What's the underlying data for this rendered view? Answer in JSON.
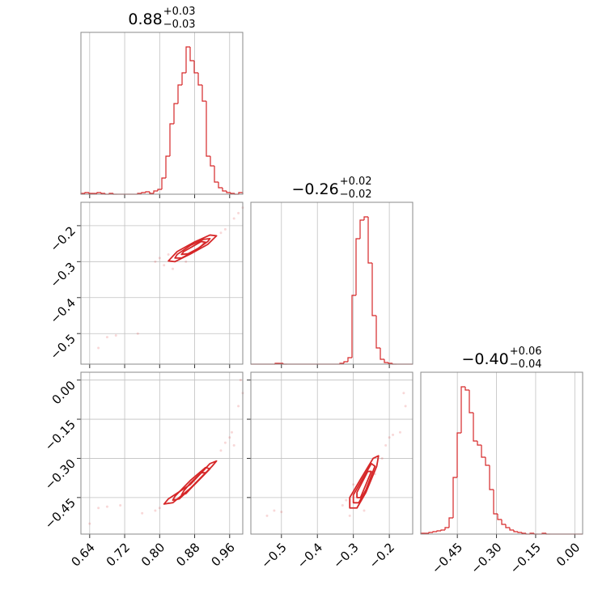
{
  "chart_data": [
    {
      "type": "histogram",
      "title": "0.88",
      "title_upper": "+0.03",
      "title_lower": "−0.03",
      "color": "#d62728",
      "bins": [
        0.62,
        0.62925,
        0.6385,
        0.64775,
        0.657,
        0.66625,
        0.6755,
        0.68475,
        0.694,
        0.70325,
        0.7125,
        0.72175,
        0.731,
        0.74025,
        0.7495,
        0.75875,
        0.768,
        0.77725,
        0.7865,
        0.79575,
        0.805,
        0.81425,
        0.8235,
        0.83275,
        0.842,
        0.85125,
        0.8605,
        0.86975,
        0.879,
        0.88825,
        0.8975,
        0.90675,
        0.916,
        0.92525,
        0.9345,
        0.94375,
        0.953,
        0.96225,
        0.9715,
        0.98075,
        0.99
      ],
      "counts": [
        1,
        2,
        1,
        1,
        2,
        1,
        0,
        1,
        0,
        0,
        0,
        0,
        0,
        0,
        1,
        2,
        3,
        1,
        4,
        6,
        20,
        47,
        87,
        112,
        135,
        150,
        182,
        165,
        150,
        135,
        115,
        47,
        35,
        15,
        8,
        4,
        2,
        1,
        0,
        2
      ],
      "xlim": [
        0.62,
        0.99
      ],
      "ylim": [
        0,
        200
      ],
      "xticks": [
        0.64,
        0.72,
        0.8,
        0.88,
        0.96
      ],
      "xtick_labels": false,
      "grid": true
    },
    {
      "type": "contour",
      "color": "#d62728",
      "scatter": {
        "x": [
          0.66,
          0.68,
          0.7,
          0.75,
          0.79,
          0.8,
          0.81,
          0.82,
          0.83,
          0.95,
          0.97,
          0.98,
          0.99,
          0.94,
          0.86,
          0.9
        ],
        "y": [
          -0.54,
          -0.51,
          -0.505,
          -0.5,
          -0.3,
          -0.29,
          -0.31,
          -0.28,
          -0.32,
          -0.21,
          -0.18,
          -0.165,
          -0.15,
          -0.22,
          -0.3,
          -0.25
        ]
      },
      "contours": [
        {
          "x": [
            0.82,
            0.835,
            0.87,
            0.91,
            0.93,
            0.915,
            0.88,
            0.84
          ],
          "y": [
            -0.298,
            -0.3,
            -0.279,
            -0.252,
            -0.228,
            -0.226,
            -0.245,
            -0.272
          ]
        },
        {
          "x": [
            0.835,
            0.85,
            0.88,
            0.91,
            0.915,
            0.9,
            0.87,
            0.84
          ],
          "y": [
            -0.29,
            -0.29,
            -0.27,
            -0.244,
            -0.236,
            -0.238,
            -0.255,
            -0.28
          ]
        },
        {
          "x": [
            0.85,
            0.865,
            0.89,
            0.905,
            0.895,
            0.875,
            0.855
          ],
          "y": [
            -0.28,
            -0.278,
            -0.262,
            -0.246,
            -0.244,
            -0.258,
            -0.272
          ]
        }
      ],
      "xlim": [
        0.62,
        0.99
      ],
      "ylim": [
        -0.585,
        -0.135
      ],
      "xticks": [
        0.64,
        0.72,
        0.8,
        0.88,
        0.96
      ],
      "xtick_labels": false,
      "yticks": [
        {
          "value": -0.2,
          "label": "−0.2"
        },
        {
          "value": -0.3,
          "label": "−0.3"
        },
        {
          "value": -0.4,
          "label": "−0.4"
        },
        {
          "value": -0.5,
          "label": "−0.5"
        }
      ],
      "ytick_labels": true,
      "grid": true
    },
    {
      "type": "histogram",
      "title": "−0.26",
      "title_upper": "+0.02",
      "title_lower": "−0.02",
      "color": "#d62728",
      "bins": [
        -0.585,
        -0.57375,
        -0.5625,
        -0.55125,
        -0.54,
        -0.52875,
        -0.5175,
        -0.50625,
        -0.495,
        -0.48375,
        -0.4725,
        -0.46125,
        -0.45,
        -0.43875,
        -0.4275,
        -0.41625,
        -0.405,
        -0.39375,
        -0.3825,
        -0.37125,
        -0.36,
        -0.34875,
        -0.3375,
        -0.32625,
        -0.315,
        -0.30375,
        -0.2925,
        -0.28125,
        -0.27,
        -0.25875,
        -0.2475,
        -0.23625,
        -0.225,
        -0.21375,
        -0.2025,
        -0.19125,
        -0.18,
        -0.16875,
        -0.1575,
        -0.14625,
        -0.135
      ],
      "counts": [
        0,
        0,
        0,
        0,
        0,
        0,
        1,
        1,
        0,
        0,
        0,
        0,
        0,
        0,
        0,
        0,
        0,
        0,
        0,
        0,
        0,
        0,
        1,
        3,
        8,
        85,
        155,
        178,
        182,
        125,
        60,
        20,
        6,
        2,
        1,
        0,
        0,
        0,
        0,
        0
      ],
      "xlim": [
        -0.585,
        -0.135
      ],
      "ylim": [
        0,
        200
      ],
      "xticks": [
        -0.5,
        -0.4,
        -0.3,
        -0.2
      ],
      "xtick_labels": false,
      "grid": true
    },
    {
      "type": "contour",
      "color": "#d62728",
      "scatter": {
        "x": [
          0.64,
          0.66,
          0.68,
          0.71,
          0.76,
          0.8,
          0.79,
          0.94,
          0.95,
          0.96,
          0.965,
          0.98,
          0.99,
          0.985,
          0.97,
          0.82
        ],
        "y": [
          -0.55,
          -0.49,
          -0.485,
          -0.48,
          -0.51,
          -0.49,
          -0.5,
          -0.27,
          -0.24,
          -0.22,
          -0.2,
          -0.1,
          -0.05,
          0.0,
          -0.25,
          -0.47
        ]
      },
      "contours": [
        {
          "x": [
            0.81,
            0.83,
            0.87,
            0.92,
            0.93,
            0.915,
            0.87,
            0.82
          ],
          "y": [
            -0.475,
            -0.47,
            -0.415,
            -0.33,
            -0.31,
            -0.32,
            -0.4,
            -0.455
          ]
        },
        {
          "x": [
            0.83,
            0.845,
            0.88,
            0.915,
            0.905,
            0.87,
            0.835
          ],
          "y": [
            -0.46,
            -0.455,
            -0.4,
            -0.34,
            -0.335,
            -0.385,
            -0.445
          ]
        },
        {
          "x": [
            0.85,
            0.86,
            0.885,
            0.905,
            0.895,
            0.87,
            0.855
          ],
          "y": [
            -0.44,
            -0.435,
            -0.39,
            -0.355,
            -0.355,
            -0.395,
            -0.425
          ]
        }
      ],
      "xlim": [
        0.62,
        0.99
      ],
      "ylim": [
        -0.59,
        0.03
      ],
      "xticks": [
        0.64,
        0.72,
        {
          "value": 0.8,
          "label": "0.80"
        },
        0.88,
        0.96
      ],
      "xtick_labels": true,
      "yticks": [
        {
          "value": 0,
          "label": "0.00"
        },
        {
          "value": -0.15,
          "label": "−0.15"
        },
        {
          "value": -0.3,
          "label": "−0.30"
        },
        {
          "value": -0.45,
          "label": "−0.45"
        }
      ],
      "ytick_labels": true,
      "grid": true
    },
    {
      "type": "contour",
      "color": "#d62728",
      "scatter": {
        "x": [
          -0.54,
          -0.52,
          -0.5,
          -0.32,
          -0.33,
          -0.31,
          -0.22,
          -0.21,
          -0.2,
          -0.19,
          -0.17,
          -0.16,
          -0.155,
          -0.3,
          -0.24,
          -0.27
        ],
        "y": [
          -0.52,
          -0.5,
          -0.505,
          -0.46,
          -0.48,
          -0.52,
          -0.3,
          -0.25,
          -0.22,
          -0.21,
          -0.2,
          -0.05,
          -0.1,
          -0.4,
          -0.36,
          -0.5
        ]
      },
      "contours": [
        {
          "x": [
            -0.31,
            -0.29,
            -0.265,
            -0.235,
            -0.23,
            -0.245,
            -0.28,
            -0.31
          ],
          "y": [
            -0.49,
            -0.49,
            -0.43,
            -0.33,
            -0.29,
            -0.3,
            -0.38,
            -0.45
          ]
        },
        {
          "x": [
            -0.3,
            -0.285,
            -0.265,
            -0.24,
            -0.25,
            -0.275,
            -0.3
          ],
          "y": [
            -0.47,
            -0.47,
            -0.42,
            -0.33,
            -0.32,
            -0.38,
            -0.44
          ]
        },
        {
          "x": [
            -0.29,
            -0.28,
            -0.265,
            -0.25,
            -0.26,
            -0.275,
            -0.29
          ],
          "y": [
            -0.45,
            -0.45,
            -0.4,
            -0.35,
            -0.35,
            -0.39,
            -0.43
          ]
        }
      ],
      "xlim": [
        -0.585,
        -0.135
      ],
      "ylim": [
        -0.59,
        0.03
      ],
      "xticks": [
        {
          "value": -0.5,
          "label": "−0.5"
        },
        {
          "value": -0.4,
          "label": "−0.4"
        },
        {
          "value": -0.3,
          "label": "−0.3"
        },
        {
          "value": -0.2,
          "label": "−0.2"
        }
      ],
      "xtick_labels": true,
      "yticks": [
        0,
        -0.15,
        -0.3,
        -0.45
      ],
      "ytick_labels": false,
      "grid": true
    },
    {
      "type": "histogram",
      "title": "−0.40",
      "title_upper": "+0.06",
      "title_lower": "−0.04",
      "color": "#d62728",
      "bins": [
        -0.59,
        -0.5745,
        -0.559,
        -0.5435,
        -0.528,
        -0.5125,
        -0.497,
        -0.4815,
        -0.466,
        -0.4505,
        -0.435,
        -0.4195,
        -0.404,
        -0.3885,
        -0.373,
        -0.3575,
        -0.342,
        -0.3265,
        -0.311,
        -0.2955,
        -0.28,
        -0.2645,
        -0.249,
        -0.2335,
        -0.218,
        -0.2025,
        -0.187,
        -0.1715,
        -0.156,
        -0.1405,
        -0.125,
        -0.1095,
        -0.094,
        -0.0785,
        -0.063,
        -0.0475,
        -0.032,
        -0.0165,
        -0.001,
        0.0145,
        0.03
      ],
      "counts": [
        1,
        1,
        2,
        3,
        4,
        5,
        8,
        20,
        70,
        125,
        182,
        178,
        150,
        115,
        110,
        95,
        85,
        55,
        25,
        18,
        12,
        8,
        5,
        3,
        2,
        1,
        0,
        1,
        0,
        0,
        1,
        0,
        0,
        0,
        0,
        0,
        0,
        0,
        0,
        0
      ],
      "xlim": [
        -0.59,
        0.03
      ],
      "ylim": [
        0,
        200
      ],
      "xticks": [
        {
          "value": -0.45,
          "label": "−0.45"
        },
        {
          "value": -0.3,
          "label": "−0.30"
        },
        {
          "value": -0.15,
          "label": "−0.15"
        },
        {
          "value": 0,
          "label": "0.00"
        }
      ],
      "xtick_labels": true,
      "grid": true
    }
  ]
}
